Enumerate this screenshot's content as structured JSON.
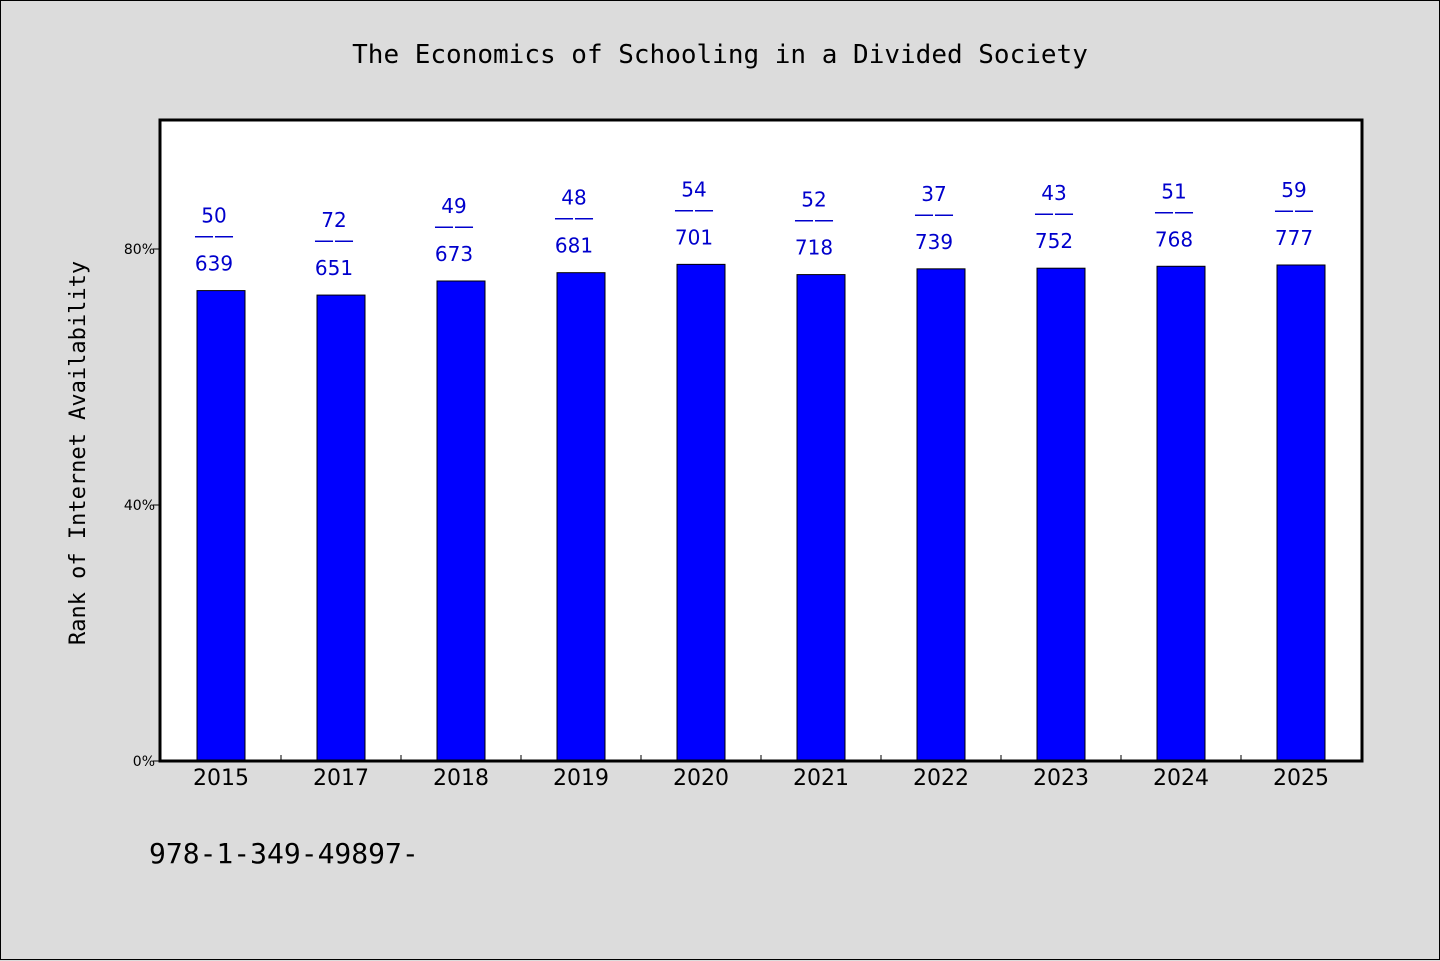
{
  "chart_data": {
    "type": "bar",
    "title": "The Economics of Schooling in a Divided Society",
    "xlabel": "",
    "ylabel": "Rank of Internet Availability",
    "categories": [
      "2015",
      "2017",
      "2018",
      "2019",
      "2020",
      "2021",
      "2022",
      "2023",
      "2024",
      "2025"
    ],
    "values": [
      73.5,
      72.8,
      75.0,
      76.3,
      77.6,
      76.0,
      76.9,
      77.0,
      77.3,
      77.5
    ],
    "data_labels": [
      {
        "top": "50",
        "bottom": "639"
      },
      {
        "top": "72",
        "bottom": "651"
      },
      {
        "top": "49",
        "bottom": "673"
      },
      {
        "top": "48",
        "bottom": "681"
      },
      {
        "top": "54",
        "bottom": "701"
      },
      {
        "top": "52",
        "bottom": "718"
      },
      {
        "top": "37",
        "bottom": "739"
      },
      {
        "top": "43",
        "bottom": "752"
      },
      {
        "top": "51",
        "bottom": "768"
      },
      {
        "top": "59",
        "bottom": "777"
      }
    ],
    "label_separator": "——",
    "yticks": [
      0,
      40,
      80
    ],
    "ytick_labels": [
      "0%",
      "40%",
      "80%"
    ],
    "ylim": [
      0,
      100
    ],
    "grid": false,
    "legend": false,
    "bar_color": "#0000ff",
    "label_color": "#0000cc"
  },
  "footer": "978-1-349-49897-",
  "colors": {
    "background": "#dcdcdc",
    "plot_background": "#ffffff",
    "axis": "#000000"
  }
}
